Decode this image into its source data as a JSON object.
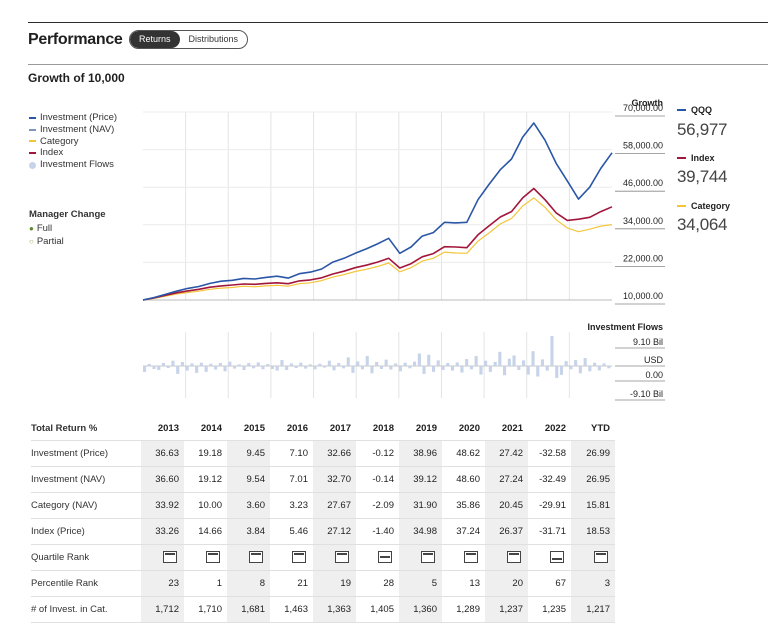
{
  "header": {
    "title": "Performance",
    "tabs": [
      {
        "label": "Returns",
        "active": true
      },
      {
        "label": "Distributions",
        "active": false
      }
    ]
  },
  "growth": {
    "title": "Growth of 10,000",
    "legend": [
      {
        "label": "Investment (Price)",
        "color": "#2a56a7",
        "marker": "line"
      },
      {
        "label": "Investment (NAV)",
        "color": "#7e95bf",
        "marker": "line"
      },
      {
        "label": "Category",
        "color": "#f3c63a",
        "marker": "line"
      },
      {
        "label": "Index",
        "color": "#a3163b",
        "marker": "line"
      },
      {
        "label": "Investment Flows",
        "color": "#c6d3e8",
        "marker": "dot"
      }
    ],
    "manager_change": {
      "title": "Manager Change",
      "full": "Full",
      "partial": "Partial",
      "full_color": "#5c8a2f",
      "partial_color": "#8ab34f"
    },
    "axis_title": "Growth",
    "side_labels": [
      {
        "name": "QQQ",
        "value": "56,977",
        "color": "#2a56a7"
      },
      {
        "name": "Index",
        "value": "39,744",
        "color": "#a3163b"
      },
      {
        "name": "Category",
        "value": "34,064",
        "color": "#f3c63a"
      }
    ]
  },
  "flows": {
    "title": "Investment Flows",
    "ticks": [
      "9.10 Bil",
      "USD",
      "0.00",
      "-9.10 Bil"
    ]
  },
  "chart_data": [
    {
      "type": "line",
      "title": "Growth of 10,000",
      "ylabel": "Growth",
      "ylim": [
        10000,
        70000
      ],
      "yticks": [
        "70,000.00",
        "58,000.00",
        "46,000.00",
        "34,000.00",
        "22,000.00",
        "10,000.00"
      ],
      "x": [
        2013.0,
        2013.25,
        2013.5,
        2013.75,
        2014.0,
        2014.25,
        2014.5,
        2014.75,
        2015.0,
        2015.25,
        2015.5,
        2015.75,
        2016.0,
        2016.25,
        2016.5,
        2016.75,
        2017.0,
        2017.25,
        2017.5,
        2017.75,
        2018.0,
        2018.25,
        2018.5,
        2018.75,
        2019.0,
        2019.25,
        2019.5,
        2019.75,
        2020.0,
        2020.25,
        2020.5,
        2020.75,
        2021.0,
        2021.25,
        2021.5,
        2021.75,
        2022.0,
        2022.25,
        2022.5,
        2022.75,
        2023.0,
        2023.25,
        2023.5
      ],
      "grid": true,
      "series": [
        {
          "name": "QQQ",
          "color": "#2a56a7",
          "values": [
            10000,
            10800,
            11800,
            12800,
            13700,
            14300,
            15300,
            16000,
            16300,
            16900,
            16700,
            17200,
            17600,
            17000,
            18400,
            18900,
            19900,
            22100,
            23300,
            24900,
            26300,
            27900,
            29700,
            24900,
            26900,
            30400,
            31500,
            34800,
            34600,
            34800,
            42000,
            47000,
            51600,
            55000,
            62000,
            66500,
            61000,
            53600,
            48000,
            42200,
            46000,
            52000,
            56977
          ]
        },
        {
          "name": "Index",
          "color": "#a3163b",
          "values": [
            10000,
            10700,
            11500,
            12300,
            12900,
            13400,
            14100,
            14500,
            14800,
            15100,
            15000,
            15300,
            15500,
            15200,
            16100,
            16400,
            17100,
            18300,
            19200,
            20300,
            21100,
            22100,
            23300,
            20200,
            21600,
            23800,
            24800,
            27000,
            26900,
            26700,
            30800,
            33700,
            36500,
            38200,
            42600,
            45600,
            42000,
            37800,
            35400,
            35800,
            36400,
            38200,
            39744
          ]
        },
        {
          "name": "Category",
          "color": "#f3c63a",
          "values": [
            10000,
            10500,
            11200,
            11900,
            12400,
            12800,
            13400,
            13800,
            14000,
            14400,
            14200,
            14500,
            14700,
            14400,
            15200,
            15500,
            16200,
            17300,
            18100,
            19100,
            19800,
            20700,
            21800,
            19000,
            20300,
            22400,
            23300,
            25300,
            25000,
            24900,
            28800,
            31400,
            34300,
            36000,
            40000,
            42600,
            39600,
            35600,
            33000,
            31800,
            32600,
            33600,
            34064
          ]
        }
      ]
    },
    {
      "type": "bar",
      "title": "Investment Flows",
      "ylabel": "USD",
      "ylim": [
        -9.1,
        9.1
      ],
      "values": [
        -1.8,
        0.6,
        -0.9,
        -1.2,
        0.9,
        -0.6,
        1.6,
        -2.4,
        1.2,
        -1.4,
        0.8,
        -2.1,
        1.0,
        -1.8,
        0.7,
        -1.1,
        0.9,
        -1.6,
        1.3,
        -0.8,
        0.5,
        -1.2,
        0.9,
        -0.7,
        1.1,
        -1.0,
        0.6,
        -0.9,
        -1.4,
        1.8,
        -1.2,
        0.8,
        -0.6,
        1.0,
        -0.8,
        0.5,
        -1.0,
        0.7,
        -0.5,
        1.6,
        -1.3,
        0.9,
        -0.7,
        2.6,
        -2.1,
        1.4,
        -1.0,
        3.0,
        -2.2,
        1.2,
        -0.9,
        1.9,
        -1.1,
        0.8,
        -1.6,
        1.0,
        -0.7,
        1.3,
        3.8,
        -2.4,
        3.4,
        -1.8,
        1.7,
        -1.2,
        0.9,
        -1.4,
        1.1,
        -2.0,
        2.1,
        -1.0,
        3.0,
        -2.6,
        1.6,
        -1.8,
        1.2,
        4.3,
        -2.8,
        2.2,
        3.2,
        -1.2,
        1.7,
        -2.6,
        4.5,
        -3.2,
        2.0,
        -1.4,
        9.1,
        -3.6,
        -2.7,
        1.5,
        -1.0,
        1.8,
        -2.2,
        2.4,
        -1.6,
        1.0,
        -1.3,
        0.8,
        -0.7
      ]
    }
  ],
  "returns_table": {
    "header_label": "Total Return %",
    "years": [
      "2013",
      "2014",
      "2015",
      "2016",
      "2017",
      "2018",
      "2019",
      "2020",
      "2021",
      "2022",
      "YTD"
    ],
    "rows": [
      {
        "label": "Investment (Price)",
        "values": [
          "36.63",
          "19.18",
          "9.45",
          "7.10",
          "32.66",
          "-0.12",
          "38.96",
          "48.62",
          "27.42",
          "-32.58",
          "26.99"
        ]
      },
      {
        "label": "Investment (NAV)",
        "values": [
          "36.60",
          "19.12",
          "9.54",
          "7.01",
          "32.70",
          "-0.14",
          "39.12",
          "48.60",
          "27.24",
          "-32.49",
          "26.95"
        ]
      },
      {
        "label": "Category (NAV)",
        "values": [
          "33.92",
          "10.00",
          "3.60",
          "3.23",
          "27.67",
          "-2.09",
          "31.90",
          "35.86",
          "20.45",
          "-29.91",
          "15.81"
        ]
      },
      {
        "label": "Index (Price)",
        "values": [
          "33.26",
          "14.66",
          "3.84",
          "5.46",
          "27.12",
          "-1.40",
          "34.98",
          "37.24",
          "26.37",
          "-31.71",
          "18.53"
        ]
      }
    ],
    "quartile_label": "Quartile Rank",
    "quartile_icons": [
      1,
      1,
      1,
      1,
      1,
      2,
      1,
      1,
      1,
      3,
      1
    ],
    "percentile_label": "Percentile Rank",
    "percentile_values": [
      "23",
      "1",
      "8",
      "21",
      "19",
      "28",
      "5",
      "13",
      "20",
      "67",
      "3"
    ],
    "count_label": "# of Invest. in Cat.",
    "count_values": [
      "1,712",
      "1,710",
      "1,681",
      "1,463",
      "1,363",
      "1,405",
      "1,360",
      "1,289",
      "1,237",
      "1,235",
      "1,217"
    ]
  }
}
